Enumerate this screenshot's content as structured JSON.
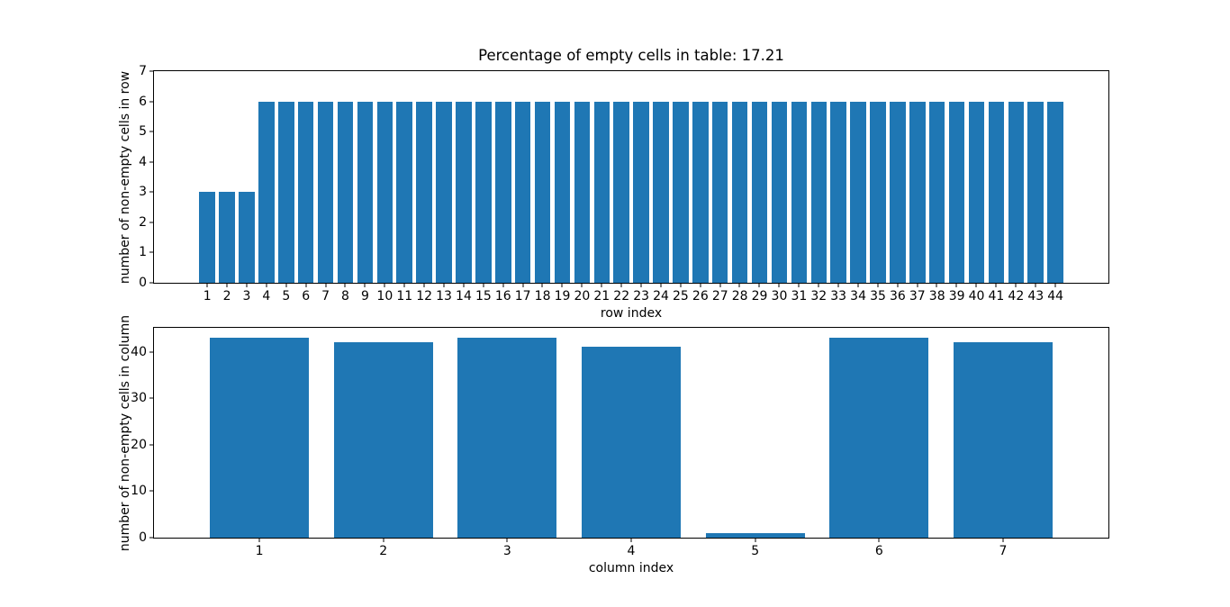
{
  "figure": {
    "background": "#ffffff",
    "bar_color": "#1f77b4",
    "axes_color": "#000000"
  },
  "chart_data": [
    {
      "type": "bar",
      "title": "Percentage of empty cells in table: 17.21",
      "xlabel": "row index",
      "ylabel": "number of non-empty cells in row",
      "categories": [
        "1",
        "2",
        "3",
        "4",
        "5",
        "6",
        "7",
        "8",
        "9",
        "10",
        "11",
        "12",
        "13",
        "14",
        "15",
        "16",
        "17",
        "18",
        "19",
        "20",
        "21",
        "22",
        "23",
        "24",
        "25",
        "26",
        "27",
        "28",
        "29",
        "30",
        "31",
        "32",
        "33",
        "34",
        "35",
        "36",
        "37",
        "38",
        "39",
        "40",
        "41",
        "42",
        "43",
        "44"
      ],
      "values": [
        3,
        3,
        3,
        6,
        6,
        6,
        6,
        6,
        6,
        6,
        6,
        6,
        6,
        6,
        6,
        6,
        6,
        6,
        6,
        6,
        6,
        6,
        6,
        6,
        6,
        6,
        6,
        6,
        6,
        6,
        6,
        6,
        6,
        6,
        6,
        6,
        6,
        6,
        6,
        6,
        6,
        6,
        6,
        6
      ],
      "yticks": [
        0,
        1,
        2,
        3,
        4,
        5,
        6,
        7
      ],
      "ylim": [
        0,
        7
      ],
      "grid": false,
      "legend": null
    },
    {
      "type": "bar",
      "title": "",
      "xlabel": "column index",
      "ylabel": "number of non-empty cells in column",
      "categories": [
        "1",
        "2",
        "3",
        "4",
        "5",
        "6",
        "7"
      ],
      "values": [
        43,
        42,
        43,
        41,
        1,
        43,
        42
      ],
      "yticks": [
        0,
        10,
        20,
        30,
        40
      ],
      "ylim": [
        0,
        45.15
      ],
      "grid": false,
      "legend": null
    }
  ]
}
